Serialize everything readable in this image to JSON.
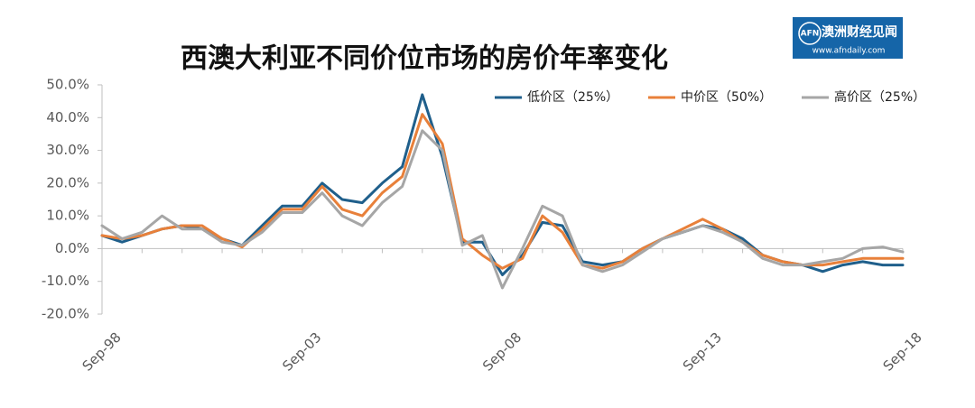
{
  "chart_data": {
    "type": "line",
    "title": "西澳大利亚不同价位市场的房价年率变化",
    "categories": [
      "Sep-98",
      null,
      null,
      null,
      null,
      null,
      null,
      null,
      null,
      null,
      "Sep-03",
      null,
      null,
      null,
      null,
      null,
      null,
      null,
      null,
      null,
      "Sep-08",
      null,
      null,
      null,
      null,
      null,
      null,
      null,
      null,
      null,
      "Sep-13",
      null,
      null,
      null,
      null,
      null,
      null,
      null,
      null,
      null,
      "Sep-18"
    ],
    "series": [
      {
        "name": "低价区（25%）",
        "color": "#1f5f8b",
        "values": [
          4,
          2,
          4,
          6,
          7,
          6,
          3,
          1,
          7,
          13,
          13,
          20,
          15,
          14,
          20,
          25,
          47,
          28,
          2,
          2,
          -8,
          -2,
          8,
          7,
          -4,
          -5,
          -4,
          0,
          3,
          5,
          7,
          6,
          3,
          -2,
          -4,
          -5,
          -7,
          -5,
          -4,
          -5,
          -5
        ]
      },
      {
        "name": "中价区（50%）",
        "color": "#e8803a",
        "values": [
          4,
          3,
          4,
          6,
          7,
          7,
          3,
          0.5,
          6,
          12,
          12,
          19,
          12,
          10,
          17,
          22,
          41,
          32,
          3,
          -2,
          -6,
          -3,
          10,
          5,
          -5,
          -6,
          -4,
          0,
          3,
          6,
          9,
          6,
          2,
          -2,
          -4,
          -5,
          -5,
          -4,
          -3,
          -3,
          -3
        ]
      },
      {
        "name": "高价区（25%）",
        "color": "#a6a6a6",
        "values": [
          7,
          3,
          5,
          10,
          6,
          6,
          2,
          1,
          5,
          11,
          11,
          17,
          10,
          7,
          14,
          19,
          36,
          30,
          1,
          4,
          -12,
          0,
          13,
          10,
          -5,
          -7,
          -5,
          -1,
          3,
          5,
          7,
          5,
          2,
          -3,
          -5,
          -5,
          -4,
          -3,
          0,
          0.5,
          -1
        ]
      }
    ],
    "ylim": [
      -20,
      50
    ],
    "yticks": [
      {
        "value": -20,
        "label": "-20.0%"
      },
      {
        "value": -10,
        "label": "-10.0%"
      },
      {
        "value": 0,
        "label": "0.0%"
      },
      {
        "value": 10,
        "label": "10.0%"
      },
      {
        "value": 20,
        "label": "20.0%"
      },
      {
        "value": 30,
        "label": "30.0%"
      },
      {
        "value": 40,
        "label": "40.0%"
      },
      {
        "value": 50,
        "label": "50.0%"
      }
    ],
    "grid": false,
    "legend": "upper right"
  },
  "logo": {
    "badge": "AFN",
    "name": "澳洲财经见闻",
    "url": "www.afndaily.com"
  }
}
